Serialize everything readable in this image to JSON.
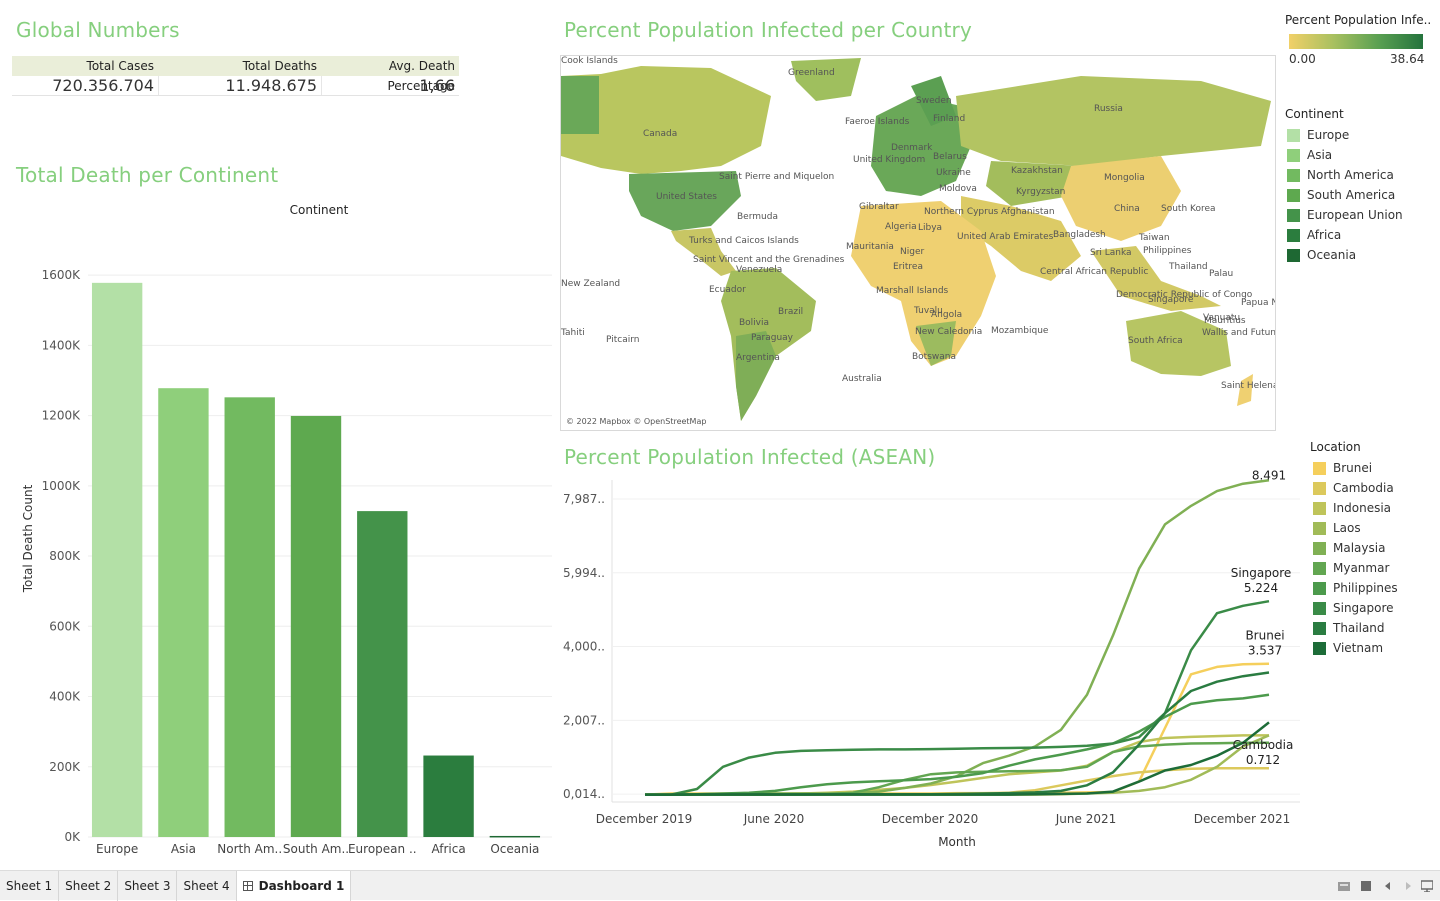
{
  "sections": {
    "global_numbers": "Global Numbers",
    "death_per_continent": "Total Death per Continent",
    "infected_per_country": "Percent Population Infected per Country",
    "infected_asean": "Percent Population Infected (ASEAN)"
  },
  "global_numbers": {
    "headers": [
      "Total Cases",
      "Total Deaths",
      "Avg. Death Percentage"
    ],
    "values": [
      "720.356.704",
      "11.948.675",
      "1,66"
    ]
  },
  "colors": {
    "title_green": "#86cf7e",
    "table_header_bg": "#eaeed9",
    "map_low": "#f1d068",
    "map_high": "#24733d"
  },
  "map": {
    "color_legend_title": "Percent Population Infe..",
    "color_min": "0.00",
    "color_max": "38.64",
    "attribution": "© 2022 Mapbox © OpenStreetMap",
    "labels": [
      "Greenland",
      "Canada",
      "United States",
      "Saint Pierre and Miquelon",
      "Bermuda",
      "Turks and Caicos Islands",
      "Saint Vincent and the Grenadines",
      "Venezuela",
      "Ecuador",
      "Brazil",
      "Bolivia",
      "Paraguay",
      "Argentina",
      "Pitcairn",
      "Faeroe Islands",
      "Sweden",
      "Finland",
      "Denmark",
      "United Kingdom",
      "Belarus",
      "Ukraine",
      "Moldova",
      "Russia",
      "Kazakhstan",
      "Mongolia",
      "Kyrgyzstan",
      "China",
      "South Korea",
      "Gibraltar",
      "Algeria",
      "Libya",
      "Northern Cyprus",
      "Afghanistan",
      "United Arab Emirates",
      "Bangladesh",
      "Taiwan",
      "Philippines",
      "Mauritania",
      "Niger",
      "Eritrea",
      "Central African Republic",
      "Sri Lanka",
      "Thailand",
      "Palau",
      "Marshall Islands",
      "Democratic Republic of Congo",
      "Singapore",
      "Papua New Guinea",
      "Tuvalu",
      "Angola",
      "Mozambique",
      "Mauritius",
      "Vanuatu",
      "Wallis and Futuna",
      "New Caledonia",
      "Botswana",
      "South Africa",
      "Australia",
      "Saint Helena",
      "New Zealand",
      "Tahiti",
      "Cook Islands"
    ]
  },
  "continent_legend": {
    "title": "Continent",
    "items": [
      {
        "label": "Europe",
        "color": "#b3e0a6"
      },
      {
        "label": "Asia",
        "color": "#8fcf7b"
      },
      {
        "label": "North America",
        "color": "#72ba60"
      },
      {
        "label": "South America",
        "color": "#5ea94f"
      },
      {
        "label": "European Union",
        "color": "#44934a"
      },
      {
        "label": "Africa",
        "color": "#2b7d3e"
      },
      {
        "label": "Oceania",
        "color": "#1e6833"
      }
    ]
  },
  "location_legend": {
    "title": "Location",
    "items": [
      {
        "label": "Brunei",
        "color": "#f5cf5c"
      },
      {
        "label": "Cambodia",
        "color": "#dcc95c"
      },
      {
        "label": "Indonesia",
        "color": "#bfc45a"
      },
      {
        "label": "Laos",
        "color": "#a1bb58"
      },
      {
        "label": "Malaysia",
        "color": "#80b054"
      },
      {
        "label": "Myanmar",
        "color": "#62a651"
      },
      {
        "label": "Philippines",
        "color": "#4c9a4c"
      },
      {
        "label": "Singapore",
        "color": "#3a8b47"
      },
      {
        "label": "Thailand",
        "color": "#2a7c41"
      },
      {
        "label": "Vietnam",
        "color": "#1d6c38"
      }
    ]
  },
  "chart_data": [
    {
      "type": "bar",
      "title": "Total Death per Continent",
      "header": "Continent",
      "xlabel": "",
      "ylabel": "Total Death Count",
      "categories": [
        "Europe",
        "Asia",
        "North Am..",
        "South Am..",
        "European ..",
        "Africa",
        "Oceania"
      ],
      "values": [
        1578000,
        1278000,
        1252000,
        1199000,
        928000,
        232000,
        3000
      ],
      "ylim": [
        0,
        1700000
      ],
      "yticks": [
        0,
        200000,
        400000,
        600000,
        800000,
        1000000,
        1200000,
        1400000,
        1600000
      ],
      "ytick_labels": [
        "0K",
        "200K",
        "400K",
        "600K",
        "800K",
        "1000K",
        "1200K",
        "1400K",
        "1600K"
      ],
      "colors": [
        "#b3e0a6",
        "#8fcf7b",
        "#72ba60",
        "#5ea94f",
        "#44934a",
        "#2b7d3e",
        "#1e6833"
      ]
    },
    {
      "type": "line",
      "title": "Percent Population Infected (ASEAN)",
      "xlabel": "Month",
      "ylabel": "",
      "x": [
        "2020-01",
        "2020-02",
        "2020-03",
        "2020-04",
        "2020-05",
        "2020-06",
        "2020-07",
        "2020-08",
        "2020-09",
        "2020-10",
        "2020-11",
        "2020-12",
        "2021-01",
        "2021-02",
        "2021-03",
        "2021-04",
        "2021-05",
        "2021-06",
        "2021-07",
        "2021-08",
        "2021-09",
        "2021-10",
        "2021-11",
        "2021-12",
        "2022-01"
      ],
      "xtick_labels": [
        "December 2019",
        "June 2020",
        "December 2020",
        "June 2021",
        "December 2021"
      ],
      "ytick_labels": [
        "0,014..",
        "2,007..",
        "4,000..",
        "5,994..",
        "7,987.."
      ],
      "ylim": [
        -0.2,
        8.5
      ],
      "series": [
        {
          "name": "Brunei",
          "color": "#f5cf5c",
          "values": [
            0,
            0.03,
            0.03,
            0.03,
            0.03,
            0.03,
            0.03,
            0.03,
            0.03,
            0.03,
            0.03,
            0.03,
            0.04,
            0.04,
            0.05,
            0.05,
            0.05,
            0.06,
            0.07,
            0.35,
            1.8,
            3.25,
            3.45,
            3.52,
            3.537
          ]
        },
        {
          "name": "Cambodia",
          "color": "#dcc95c",
          "values": [
            0,
            0,
            0,
            0,
            0,
            0,
            0,
            0,
            0,
            0,
            0,
            0,
            0,
            0.01,
            0.05,
            0.12,
            0.25,
            0.38,
            0.5,
            0.6,
            0.66,
            0.7,
            0.71,
            0.712,
            0.712
          ]
        },
        {
          "name": "Indonesia",
          "color": "#bfc45a",
          "values": [
            0,
            0,
            0,
            0,
            0.01,
            0.02,
            0.03,
            0.05,
            0.08,
            0.13,
            0.18,
            0.26,
            0.35,
            0.45,
            0.55,
            0.6,
            0.65,
            0.78,
            1.15,
            1.42,
            1.53,
            1.56,
            1.58,
            1.6,
            1.6
          ]
        },
        {
          "name": "Laos",
          "color": "#a1bb58",
          "values": [
            0,
            0,
            0,
            0,
            0,
            0,
            0,
            0,
            0,
            0,
            0,
            0,
            0,
            0,
            0,
            0,
            0.01,
            0.03,
            0.05,
            0.1,
            0.2,
            0.4,
            0.75,
            1.3,
            1.6
          ]
        },
        {
          "name": "Malaysia",
          "color": "#80b054",
          "values": [
            0,
            0,
            0.01,
            0.02,
            0.02,
            0.03,
            0.03,
            0.03,
            0.04,
            0.08,
            0.18,
            0.3,
            0.5,
            0.85,
            1.05,
            1.3,
            1.75,
            2.7,
            4.3,
            6.1,
            7.3,
            7.8,
            8.2,
            8.4,
            8.491
          ]
        },
        {
          "name": "Myanmar",
          "color": "#62a651",
          "values": [
            0,
            0,
            0,
            0,
            0,
            0,
            0,
            0.01,
            0.05,
            0.2,
            0.4,
            0.55,
            0.6,
            0.62,
            0.63,
            0.64,
            0.66,
            0.75,
            1.15,
            1.3,
            1.35,
            1.38,
            1.39,
            1.4,
            1.4
          ]
        },
        {
          "name": "Philippines",
          "color": "#4c9a4c",
          "values": [
            0,
            0,
            0.01,
            0.03,
            0.05,
            0.1,
            0.2,
            0.28,
            0.33,
            0.36,
            0.39,
            0.42,
            0.48,
            0.58,
            0.78,
            0.95,
            1.08,
            1.22,
            1.38,
            1.7,
            2.1,
            2.45,
            2.55,
            2.6,
            2.7
          ]
        },
        {
          "name": "Singapore",
          "color": "#3a8b47",
          "values": [
            0,
            0,
            0.15,
            0.75,
            1.0,
            1.13,
            1.18,
            1.2,
            1.21,
            1.22,
            1.22,
            1.23,
            1.24,
            1.25,
            1.26,
            1.27,
            1.29,
            1.32,
            1.38,
            1.55,
            2.2,
            3.9,
            4.9,
            5.1,
            5.224
          ]
        },
        {
          "name": "Thailand",
          "color": "#2a7c41",
          "values": [
            0,
            0,
            0.01,
            0.01,
            0.01,
            0.01,
            0.01,
            0.01,
            0.01,
            0.01,
            0.01,
            0.01,
            0.02,
            0.03,
            0.04,
            0.06,
            0.1,
            0.25,
            0.6,
            1.35,
            2.2,
            2.8,
            3.05,
            3.2,
            3.3
          ]
        },
        {
          "name": "Vietnam",
          "color": "#1d6c38",
          "values": [
            0,
            0,
            0,
            0,
            0,
            0,
            0,
            0,
            0,
            0,
            0,
            0,
            0,
            0,
            0,
            0.01,
            0.02,
            0.03,
            0.08,
            0.35,
            0.65,
            0.8,
            1.05,
            1.4,
            1.95
          ]
        }
      ],
      "end_labels": [
        {
          "name": "Malaysia",
          "value": "8.491"
        },
        {
          "name": "Singapore",
          "value": "5.224"
        },
        {
          "name": "Brunei",
          "value": "3.537"
        },
        {
          "name": "Cambodia",
          "value": "0.712"
        }
      ]
    }
  ],
  "tabs": [
    "Sheet 1",
    "Sheet 2",
    "Sheet 3",
    "Sheet 4",
    "Dashboard 1"
  ]
}
